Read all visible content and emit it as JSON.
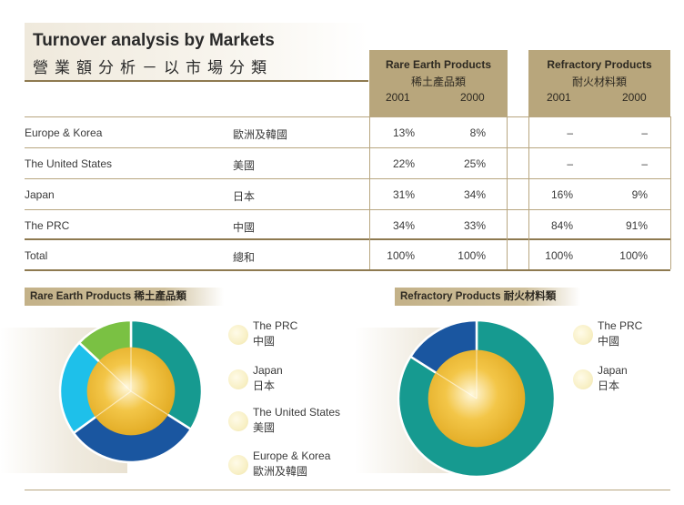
{
  "title": {
    "en": "Turnover analysis by Markets",
    "cn": "營業額分析－以市場分類"
  },
  "groups": [
    {
      "en": "Rare Earth Products",
      "cn": "稀土產品類",
      "years": [
        "2001",
        "2000"
      ]
    },
    {
      "en": "Refractory Products",
      "cn": "耐火材料類",
      "years": [
        "2001",
        "2000"
      ]
    }
  ],
  "rows": [
    {
      "en": "Europe & Korea",
      "cn": "歐洲及韓國",
      "re2001": "13%",
      "re2000": "8%",
      "rf2001": "–",
      "rf2000": "–"
    },
    {
      "en": "The United States",
      "cn": "美國",
      "re2001": "22%",
      "re2000": "25%",
      "rf2001": "–",
      "rf2000": "–"
    },
    {
      "en": "Japan",
      "cn": "日本",
      "re2001": "31%",
      "re2000": "34%",
      "rf2001": "16%",
      "rf2000": "9%"
    },
    {
      "en": "The PRC",
      "cn": "中國",
      "re2001": "34%",
      "re2000": "33%",
      "rf2001": "84%",
      "rf2000": "91%"
    },
    {
      "en": "Total",
      "cn": "總和",
      "re2001": "100%",
      "re2000": "100%",
      "rf2001": "100%",
      "rf2000": "100%"
    }
  ],
  "legend_left": [
    {
      "en": "The PRC",
      "cn": "中國"
    },
    {
      "en": "Japan",
      "cn": "日本"
    },
    {
      "en": "The United States",
      "cn": "美國"
    },
    {
      "en": "Europe & Korea",
      "cn": "歐洲及韓國"
    }
  ],
  "legend_right": [
    {
      "en": "The PRC",
      "cn": "中國"
    },
    {
      "en": "Japan",
      "cn": "日本"
    }
  ],
  "chart_data": [
    {
      "type": "pie",
      "title": "Rare Earth Products 稀土產品類",
      "categories": [
        "The PRC",
        "Japan",
        "The United States",
        "Europe & Korea"
      ],
      "values": [
        34,
        31,
        22,
        13
      ],
      "colors": [
        "#169a90",
        "#1a56a0",
        "#1ec0ea",
        "#7ac143"
      ],
      "center_color": "#f3c648"
    },
    {
      "type": "pie",
      "title": "Refractory Products 耐火材料類",
      "categories": [
        "The PRC",
        "Japan"
      ],
      "values": [
        84,
        16
      ],
      "colors": [
        "#169a90",
        "#1a56a0"
      ],
      "center_color": "#f3c648"
    }
  ]
}
